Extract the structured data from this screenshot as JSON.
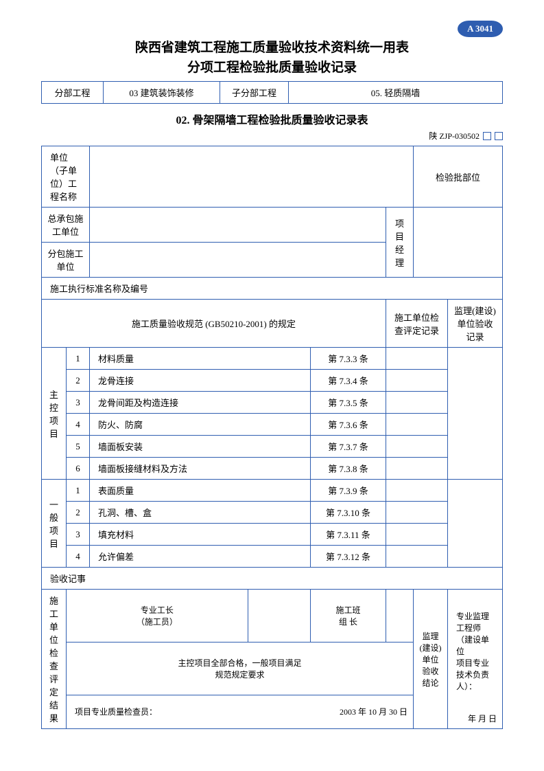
{
  "badge": "A 3041",
  "title1": "陕西省建筑工程施工质量验收技术资料统一用表",
  "title2": "分项工程检验批质量验收记录",
  "headerRow": {
    "c1": "分部工程",
    "c2": "03  建筑装饰装修",
    "c3": "子分部工程",
    "c4": "05. 轻质隔墙"
  },
  "subtitle": "02.    骨架隔墙工程检验批质量验收记录表",
  "formCode": "陕  ZJP-030502",
  "row_unitName": "单位（子单位）工程名称",
  "row_batchLoc": "检验批部位",
  "row_general": "总承包施工单位",
  "row_pm": "项目\n经理",
  "row_sub": "分包施工单位",
  "row_std": "施工执行标准名称及编号",
  "col_spec": "施工质量验收规范  (GB50210-2001)  的规定",
  "col_check": "施工单位检查评定记录",
  "col_super": "监理(建设)单位验收记录",
  "group_main": "主控\n项目",
  "group_gen": "一般\n项目",
  "items_main": [
    {
      "n": "1",
      "name": "材料质量",
      "ref": "第 7.3.3 条"
    },
    {
      "n": "2",
      "name": "龙骨连接",
      "ref": "第 7.3.4 条"
    },
    {
      "n": "3",
      "name": "龙骨间距及构造连接",
      "ref": "第 7.3.5 条"
    },
    {
      "n": "4",
      "name": "防火、防腐",
      "ref": "第 7.3.6 条"
    },
    {
      "n": "5",
      "name": "墙面板安装",
      "ref": "第 7.3.7 条"
    },
    {
      "n": "6",
      "name": "墙面板接缝材料及方法",
      "ref": "第 7.3.8 条"
    }
  ],
  "items_gen": [
    {
      "n": "1",
      "name": "表面质量",
      "ref": "第 7.3.9 条"
    },
    {
      "n": "2",
      "name": "孔洞、槽、盒",
      "ref": "第 7.3.10 条"
    },
    {
      "n": "3",
      "name": "填充材料",
      "ref": "第 7.3.11 条"
    },
    {
      "n": "4",
      "name": "允许偏差",
      "ref": "第 7.3.12 条"
    }
  ],
  "notes_label": "验收记事",
  "result_label": "施工\n单位\n检查\n评定\n结果",
  "foreman_label": "专业工长\n（施工员）",
  "teamleader_label": "施工班\n组  长",
  "result_text": "主控项目全部合格，一般项目满足\n规范规定要求",
  "inspector_label": "项目专业质量检查员：",
  "date_text": "2003 年 10 月  30  日",
  "concl_label": "监理\n(建设)\n单位\n验收\n结论",
  "engineer_text": "专业监理工程师（建设单位\n项目专业技术负责人）：",
  "date_blank": "年      月      日"
}
